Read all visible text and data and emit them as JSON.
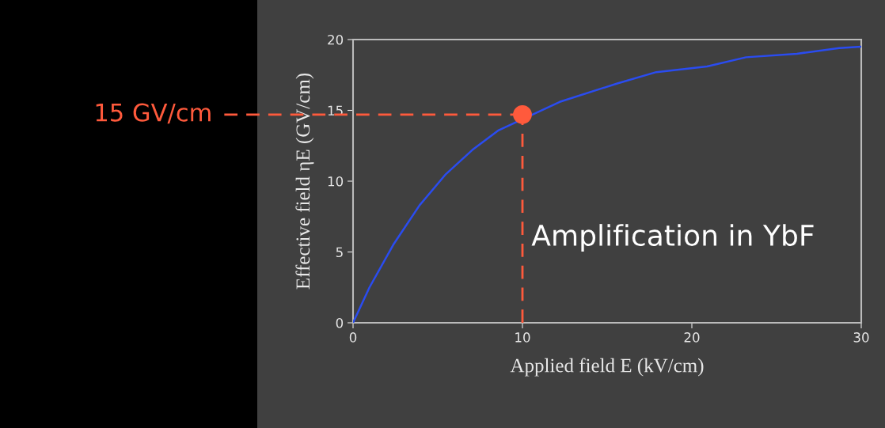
{
  "chart_data": {
    "type": "line",
    "xlabel": "Applied field E (kV/cm)",
    "ylabel": "Effective field ηE (GV/cm)",
    "xlim": [
      0,
      30
    ],
    "xticks": [
      0,
      10,
      20,
      30
    ],
    "ylim": [
      0,
      20
    ],
    "yticks": [
      0,
      5,
      10,
      15,
      20
    ],
    "line_style": "solid",
    "series": [
      {
        "color": "#2a4cf0",
        "marker": "none",
        "x": [
          0,
          0.97,
          2.37,
          3.93,
          5.48,
          7.04,
          8.6,
          12.2,
          15.6,
          17.9,
          20.9,
          23.2,
          26.2,
          28.7,
          30
        ],
        "values": [
          0,
          2.5,
          5.5,
          8.3,
          10.5,
          12.2,
          13.6,
          15.6,
          16.9,
          17.7,
          18.1,
          18.75,
          19.0,
          19.4,
          19.5
        ]
      },
      {
        "type": "scatter",
        "marker": "circle",
        "color": "#ff5a3c",
        "x": [
          10
        ],
        "values": [
          14.7
        ]
      }
    ],
    "ref_lines": [
      {
        "axis": "y",
        "value": 14.7,
        "label": "15 GV/cm",
        "color": "#ff5a3c",
        "line_style": "dashed"
      },
      {
        "axis": "x",
        "value": 10,
        "color": "#ff5a3c",
        "line_style": "dashed"
      }
    ],
    "annotations": [
      "Amplification in YbF"
    ]
  }
}
